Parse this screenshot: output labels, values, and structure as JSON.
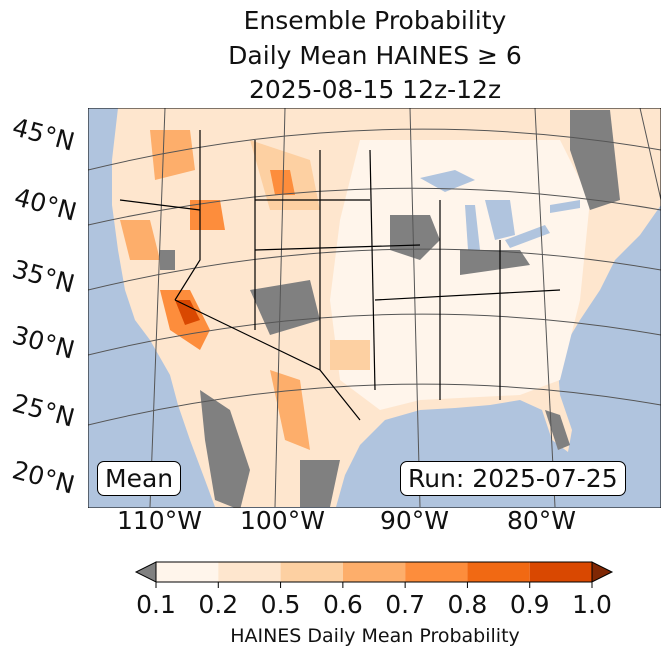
{
  "title": {
    "line1": "Ensemble Probability",
    "line2": "Daily Mean HAINES ≥ 6",
    "line3": "2025-08-15 12z-12z"
  },
  "lat_labels": [
    "45°N",
    "40°N",
    "35°N",
    "30°N",
    "25°N",
    "20°N"
  ],
  "lon_labels": [
    "110°W",
    "100°W",
    "90°W",
    "80°W"
  ],
  "mean_label": "Mean",
  "run_label": "Run: 2025-07-25",
  "colorbar": {
    "ticks": [
      "0.1",
      "0.2",
      "0.5",
      "0.6",
      "0.7",
      "0.8",
      "0.9",
      "1.0"
    ],
    "colors": [
      "#fff5eb",
      "#fee6ce",
      "#fdd0a2",
      "#fdae6b",
      "#fd8d3c",
      "#f16913",
      "#d94801"
    ],
    "under_color": "#808080",
    "over_color": "#7f2704",
    "label": "HAINES Daily Mean Probability"
  },
  "colors": {
    "ocean": "#b0c4de",
    "missing": "#808080"
  }
}
